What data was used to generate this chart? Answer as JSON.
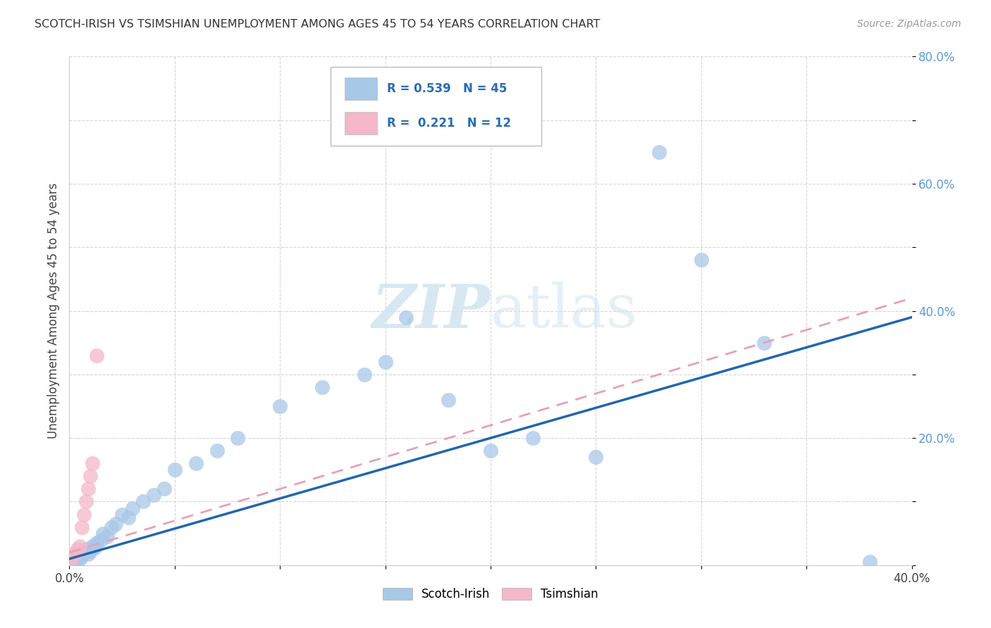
{
  "title": "SCOTCH-IRISH VS TSIMSHIAN UNEMPLOYMENT AMONG AGES 45 TO 54 YEARS CORRELATION CHART",
  "source": "Source: ZipAtlas.com",
  "ylabel": "Unemployment Among Ages 45 to 54 years",
  "xlim": [
    0.0,
    0.4
  ],
  "ylim": [
    0.0,
    0.8
  ],
  "scotch_irish_x": [
    0.001,
    0.002,
    0.002,
    0.003,
    0.003,
    0.004,
    0.004,
    0.005,
    0.005,
    0.006,
    0.007,
    0.008,
    0.009,
    0.01,
    0.011,
    0.012,
    0.013,
    0.015,
    0.016,
    0.018,
    0.02,
    0.022,
    0.025,
    0.028,
    0.03,
    0.035,
    0.04,
    0.045,
    0.05,
    0.06,
    0.07,
    0.08,
    0.1,
    0.12,
    0.14,
    0.15,
    0.16,
    0.18,
    0.2,
    0.22,
    0.25,
    0.28,
    0.3,
    0.33,
    0.38
  ],
  "scotch_irish_y": [
    0.005,
    0.008,
    0.012,
    0.01,
    0.015,
    0.008,
    0.012,
    0.01,
    0.018,
    0.015,
    0.02,
    0.025,
    0.018,
    0.022,
    0.03,
    0.028,
    0.035,
    0.04,
    0.05,
    0.045,
    0.06,
    0.065,
    0.08,
    0.075,
    0.09,
    0.1,
    0.11,
    0.12,
    0.15,
    0.16,
    0.18,
    0.2,
    0.25,
    0.28,
    0.3,
    0.32,
    0.39,
    0.26,
    0.18,
    0.2,
    0.17,
    0.65,
    0.48,
    0.35,
    0.005
  ],
  "tsimshian_x": [
    0.001,
    0.002,
    0.003,
    0.004,
    0.005,
    0.006,
    0.007,
    0.008,
    0.009,
    0.01,
    0.011,
    0.013
  ],
  "tsimshian_y": [
    0.01,
    0.015,
    0.02,
    0.025,
    0.03,
    0.06,
    0.08,
    0.1,
    0.12,
    0.14,
    0.16,
    0.33
  ],
  "scotch_irish_R": 0.539,
  "scotch_irish_N": 45,
  "tsimshian_R": 0.221,
  "tsimshian_N": 12,
  "scotch_color": "#a8c8e8",
  "tsimshian_color": "#f4b8c8",
  "scotch_line_color": "#2166ac",
  "tsimshian_line_color": "#e8a0b8",
  "legend_color": "#2b6cb0",
  "watermark_color": "#d0e4f0",
  "background_color": "#ffffff",
  "grid_color": "#cccccc",
  "ytick_color": "#5b9bd5"
}
